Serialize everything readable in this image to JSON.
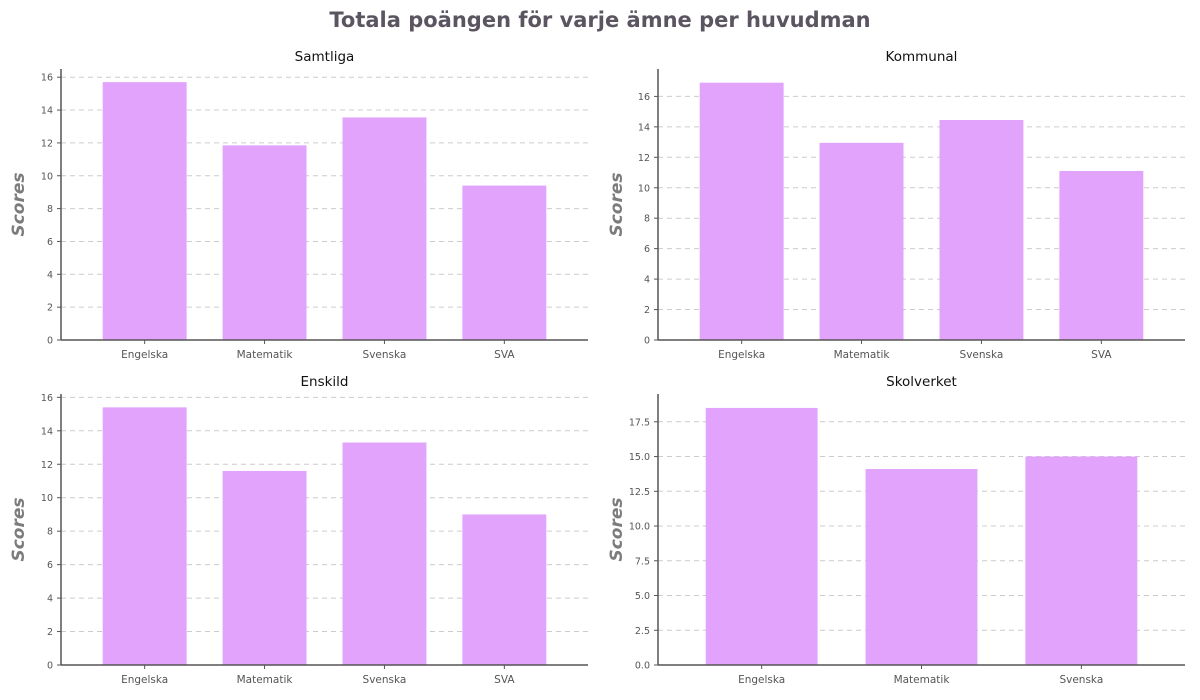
{
  "figure": {
    "title": "Totala poängen för varje ämne per huvudman",
    "bar_color": "#e1a3fb"
  },
  "chart_data": [
    {
      "type": "bar",
      "title": "Samtliga",
      "ylabel": "Scores",
      "xlabel": "",
      "categories": [
        "Engelska",
        "Matematik",
        "Svenska",
        "SVA"
      ],
      "values": [
        15.7,
        11.85,
        13.55,
        9.4
      ],
      "ylim": [
        0,
        16.5
      ],
      "yticks": [
        0,
        2,
        4,
        6,
        8,
        10,
        12,
        14,
        16
      ],
      "ytick_labels": [
        "0",
        "2",
        "4",
        "6",
        "8",
        "10",
        "12",
        "14",
        "16"
      ],
      "grid": true
    },
    {
      "type": "bar",
      "title": "Kommunal",
      "ylabel": "Scores",
      "xlabel": "",
      "categories": [
        "Engelska",
        "Matematik",
        "Svenska",
        "SVA"
      ],
      "values": [
        16.9,
        12.95,
        14.45,
        11.1
      ],
      "ylim": [
        0,
        17.8
      ],
      "yticks": [
        0,
        2,
        4,
        6,
        8,
        10,
        12,
        14,
        16
      ],
      "ytick_labels": [
        "0",
        "2",
        "4",
        "6",
        "8",
        "10",
        "12",
        "14",
        "16"
      ],
      "grid": true
    },
    {
      "type": "bar",
      "title": "Enskild",
      "ylabel": "Scores",
      "xlabel": "",
      "categories": [
        "Engelska",
        "Matematik",
        "Svenska",
        "SVA"
      ],
      "values": [
        15.4,
        11.6,
        13.3,
        9.0
      ],
      "ylim": [
        0,
        16.2
      ],
      "yticks": [
        0,
        2,
        4,
        6,
        8,
        10,
        12,
        14,
        16
      ],
      "ytick_labels": [
        "0",
        "2",
        "4",
        "6",
        "8",
        "10",
        "12",
        "14",
        "16"
      ],
      "grid": true
    },
    {
      "type": "bar",
      "title": "Skolverket",
      "ylabel": "Scores",
      "xlabel": "",
      "categories": [
        "Engelska",
        "Matematik",
        "Svenska"
      ],
      "values": [
        18.5,
        14.1,
        15.0
      ],
      "ylim": [
        0,
        19.5
      ],
      "yticks": [
        0,
        2.5,
        5,
        7.5,
        10,
        12.5,
        15,
        17.5
      ],
      "ytick_labels": [
        "0.0",
        "2.5",
        "5.0",
        "7.5",
        "10.0",
        "12.5",
        "15.0",
        "17.5"
      ],
      "grid": true
    }
  ]
}
